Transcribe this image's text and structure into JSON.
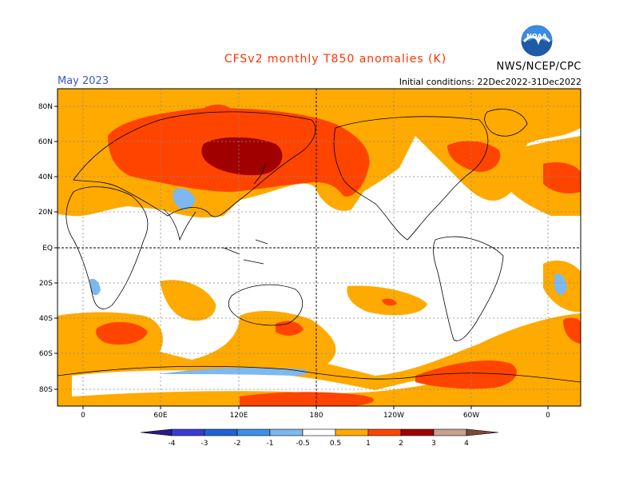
{
  "header": {
    "title": "CFSv2 monthly T850 anomalies (K)",
    "agency": "NWS/NCEP/CPC",
    "month": "May 2023",
    "initial_conditions": "Initial conditions: 22Dec2022-31Dec2022",
    "logo_text": "NOAA"
  },
  "map": {
    "lat_labels": [
      "80N",
      "60N",
      "40N",
      "20N",
      "EQ",
      "20S",
      "40S",
      "60S",
      "80S"
    ],
    "lon_labels": [
      "0",
      "60E",
      "120E",
      "180",
      "120W",
      "60W",
      "0"
    ]
  },
  "colorbar": {
    "levels": [
      "-4",
      "-3",
      "-2",
      "-1",
      "-0.5",
      "0.5",
      "1",
      "2",
      "3",
      "4"
    ],
    "colors": {
      "below_-4": "#2a1a8c",
      "-4_-3": "#3b3bd0",
      "-3_-2": "#1f63d6",
      "-2_-1": "#3d90e8",
      "-1_-0.5": "#7db8f0",
      "neutral": "#ffffff",
      "0.5_1": "#ffaa00",
      "1_2": "#ff4400",
      "2_3": "#a00000",
      "3_4": "#c8a090",
      "above_4": "#7a4a3a"
    }
  }
}
